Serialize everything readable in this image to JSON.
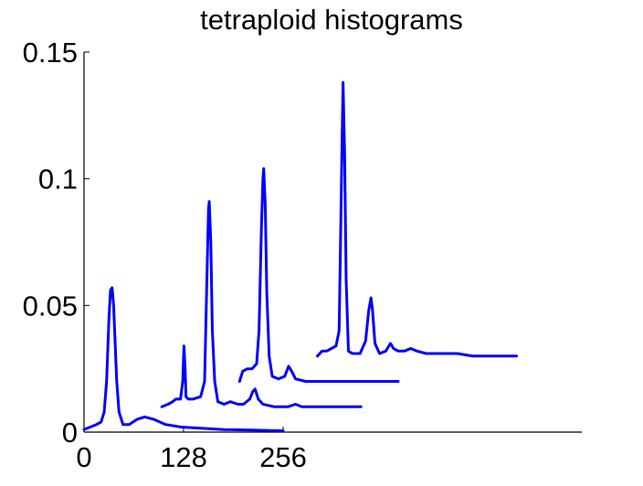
{
  "chart_data": {
    "type": "line",
    "title": "tetraploid histograms",
    "xlabel": "",
    "ylabel": "",
    "xlim": [
      0,
      640
    ],
    "ylim": [
      0,
      0.15
    ],
    "xticks": [
      0,
      128,
      256
    ],
    "xtick_labels": [
      "0",
      "128",
      "256"
    ],
    "yticks": [
      0,
      0.05,
      0.1,
      0.15
    ],
    "ytick_labels": [
      "0",
      "0.05",
      "0.1",
      "0.15"
    ],
    "grid": false,
    "series": [
      {
        "points": [
          [
            0,
            0.001
          ],
          [
            8,
            0.002
          ],
          [
            16,
            0.003
          ],
          [
            22,
            0.004
          ],
          [
            26,
            0.008
          ],
          [
            29,
            0.02
          ],
          [
            32,
            0.045
          ],
          [
            34,
            0.056
          ],
          [
            36,
            0.057
          ],
          [
            38,
            0.05
          ],
          [
            40,
            0.035
          ],
          [
            42,
            0.02
          ],
          [
            45,
            0.008
          ],
          [
            50,
            0.003
          ],
          [
            58,
            0.003
          ],
          [
            68,
            0.005
          ],
          [
            78,
            0.006
          ],
          [
            90,
            0.005
          ],
          [
            105,
            0.003
          ],
          [
            125,
            0.002
          ],
          [
            150,
            0.0015
          ],
          [
            180,
            0.001
          ],
          [
            215,
            0.0008
          ],
          [
            256,
            0.0005
          ]
        ]
      },
      {
        "points": [
          [
            100,
            0.01
          ],
          [
            108,
            0.011
          ],
          [
            114,
            0.012
          ],
          [
            118,
            0.013
          ],
          [
            124,
            0.013
          ],
          [
            127,
            0.02
          ],
          [
            128.5,
            0.034
          ],
          [
            130,
            0.025
          ],
          [
            131,
            0.014
          ],
          [
            134,
            0.013
          ],
          [
            140,
            0.013
          ],
          [
            150,
            0.014
          ],
          [
            155,
            0.02
          ],
          [
            158,
            0.06
          ],
          [
            160,
            0.088
          ],
          [
            161,
            0.091
          ],
          [
            163,
            0.075
          ],
          [
            165,
            0.04
          ],
          [
            168,
            0.02
          ],
          [
            172,
            0.012
          ],
          [
            180,
            0.011
          ],
          [
            188,
            0.012
          ],
          [
            198,
            0.011
          ],
          [
            205,
            0.011
          ],
          [
            213,
            0.013
          ],
          [
            217,
            0.016
          ],
          [
            220,
            0.017
          ],
          [
            224,
            0.013
          ],
          [
            230,
            0.011
          ],
          [
            245,
            0.01
          ],
          [
            262,
            0.01
          ],
          [
            272,
            0.011
          ],
          [
            280,
            0.01
          ],
          [
            300,
            0.01
          ],
          [
            356,
            0.01
          ]
        ]
      },
      {
        "points": [
          [
            200,
            0.02
          ],
          [
            204,
            0.024
          ],
          [
            210,
            0.025
          ],
          [
            216,
            0.025
          ],
          [
            222,
            0.027
          ],
          [
            225,
            0.04
          ],
          [
            228,
            0.08
          ],
          [
            230,
            0.1
          ],
          [
            231,
            0.104
          ],
          [
            233,
            0.09
          ],
          [
            235,
            0.055
          ],
          [
            238,
            0.03
          ],
          [
            242,
            0.022
          ],
          [
            250,
            0.021
          ],
          [
            258,
            0.022
          ],
          [
            263,
            0.026
          ],
          [
            267,
            0.024
          ],
          [
            272,
            0.021
          ],
          [
            285,
            0.02
          ],
          [
            310,
            0.02
          ],
          [
            350,
            0.02
          ],
          [
            380,
            0.02
          ],
          [
            404,
            0.02
          ]
        ]
      },
      {
        "points": [
          [
            300,
            0.03
          ],
          [
            306,
            0.032
          ],
          [
            312,
            0.032
          ],
          [
            318,
            0.033
          ],
          [
            324,
            0.034
          ],
          [
            328,
            0.04
          ],
          [
            331,
            0.1
          ],
          [
            333,
            0.138
          ],
          [
            335,
            0.11
          ],
          [
            337,
            0.06
          ],
          [
            340,
            0.032
          ],
          [
            345,
            0.031
          ],
          [
            355,
            0.031
          ],
          [
            362,
            0.036
          ],
          [
            366,
            0.048
          ],
          [
            369,
            0.053
          ],
          [
            371,
            0.048
          ],
          [
            374,
            0.035
          ],
          [
            380,
            0.031
          ],
          [
            388,
            0.032
          ],
          [
            394,
            0.035
          ],
          [
            398,
            0.033
          ],
          [
            404,
            0.032
          ],
          [
            412,
            0.032
          ],
          [
            420,
            0.033
          ],
          [
            428,
            0.032
          ],
          [
            440,
            0.031
          ],
          [
            460,
            0.031
          ],
          [
            480,
            0.031
          ],
          [
            500,
            0.03
          ],
          [
            556,
            0.03
          ]
        ]
      }
    ]
  }
}
